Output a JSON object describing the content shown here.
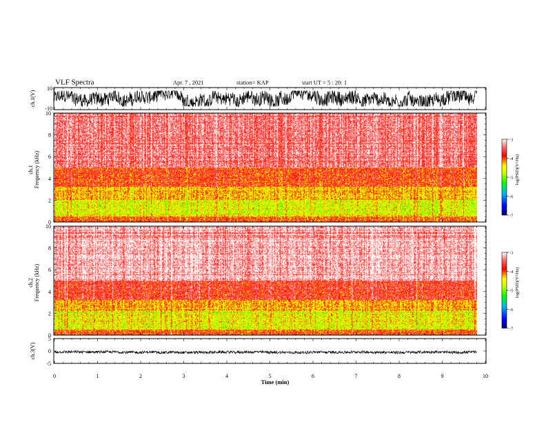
{
  "header": {
    "title": "VLF Spectra",
    "date": "Apr. 7 , 2021",
    "station": "station= KAP",
    "start": "start UT = 5 : 20: 1"
  },
  "chart_data": [
    {
      "type": "line",
      "name": "ch1-waveform",
      "ylabel": "ch.1(V)",
      "ylim": [
        -10,
        10
      ],
      "y_tick_labels": [
        "10",
        "-10"
      ],
      "xlim": [
        0,
        10
      ],
      "data_extent_min": 9.8,
      "band_V": [
        -7,
        7
      ],
      "color": "#000000"
    },
    {
      "type": "heatmap",
      "name": "ch1-spectrogram",
      "ylabel": "ch.1\nFrequency (kHz)",
      "ylim": [
        0,
        10
      ],
      "y_tick_labels": [
        "0",
        "2",
        "4",
        "6",
        "8",
        "10"
      ],
      "xlim": [
        0,
        10
      ],
      "data_extent_min": 9.8,
      "colorbar": {
        "label": "log(PSD)(V²/Hz)",
        "range": [
          -7,
          -3
        ],
        "tick_labels": [
          "-3",
          "-4",
          "-5",
          "-6",
          "-7"
        ]
      },
      "level_bands_log_psd": [
        {
          "freq_kHz": [
            0,
            0.5
          ],
          "level": -3.9
        },
        {
          "freq_kHz": [
            0.5,
            2
          ],
          "level": -4.6
        },
        {
          "freq_kHz": [
            2,
            3.2
          ],
          "level": -4.3
        },
        {
          "freq_kHz": [
            3.2,
            5
          ],
          "level": -3.9
        },
        {
          "freq_kHz": [
            5,
            10
          ],
          "level": -3.4
        }
      ]
    },
    {
      "type": "heatmap",
      "name": "ch2-spectrogram",
      "ylabel": "ch.2\nFrequency (kHz)",
      "ylim": [
        0,
        10
      ],
      "y_tick_labels": [
        "0",
        "2",
        "4",
        "6",
        "8",
        "10"
      ],
      "xlim": [
        0,
        10
      ],
      "data_extent_min": 9.8,
      "colorbar": {
        "label": "log(PSD)(V²/Hz)",
        "range": [
          -7,
          -3
        ],
        "tick_labels": [
          "-3",
          "-4",
          "-5",
          "-6",
          "-7"
        ]
      },
      "level_bands_log_psd": [
        {
          "freq_kHz": [
            0,
            0.5
          ],
          "level": -3.9
        },
        {
          "freq_kHz": [
            0.5,
            2.2
          ],
          "level": -4.5
        },
        {
          "freq_kHz": [
            2.2,
            3.2
          ],
          "level": -4.2
        },
        {
          "freq_kHz": [
            3.2,
            5
          ],
          "level": -3.7
        },
        {
          "freq_kHz": [
            5,
            10
          ],
          "level": -3.2
        }
      ]
    },
    {
      "type": "line",
      "name": "ch3-waveform",
      "ylabel": "ch.3(V)",
      "ylim": [
        -5,
        5
      ],
      "y_tick_labels": [
        "5",
        "0",
        "-5"
      ],
      "xlim": [
        0,
        10
      ],
      "data_extent_min": 9.8,
      "band_V": [
        -1.1,
        0.1
      ],
      "color": "#000000"
    }
  ],
  "x_axis": {
    "label": "Time (min)",
    "range": [
      0,
      10
    ],
    "tick_labels": [
      "0",
      "1",
      "2",
      "3",
      "4",
      "5",
      "6",
      "7",
      "8",
      "9",
      "10"
    ]
  }
}
